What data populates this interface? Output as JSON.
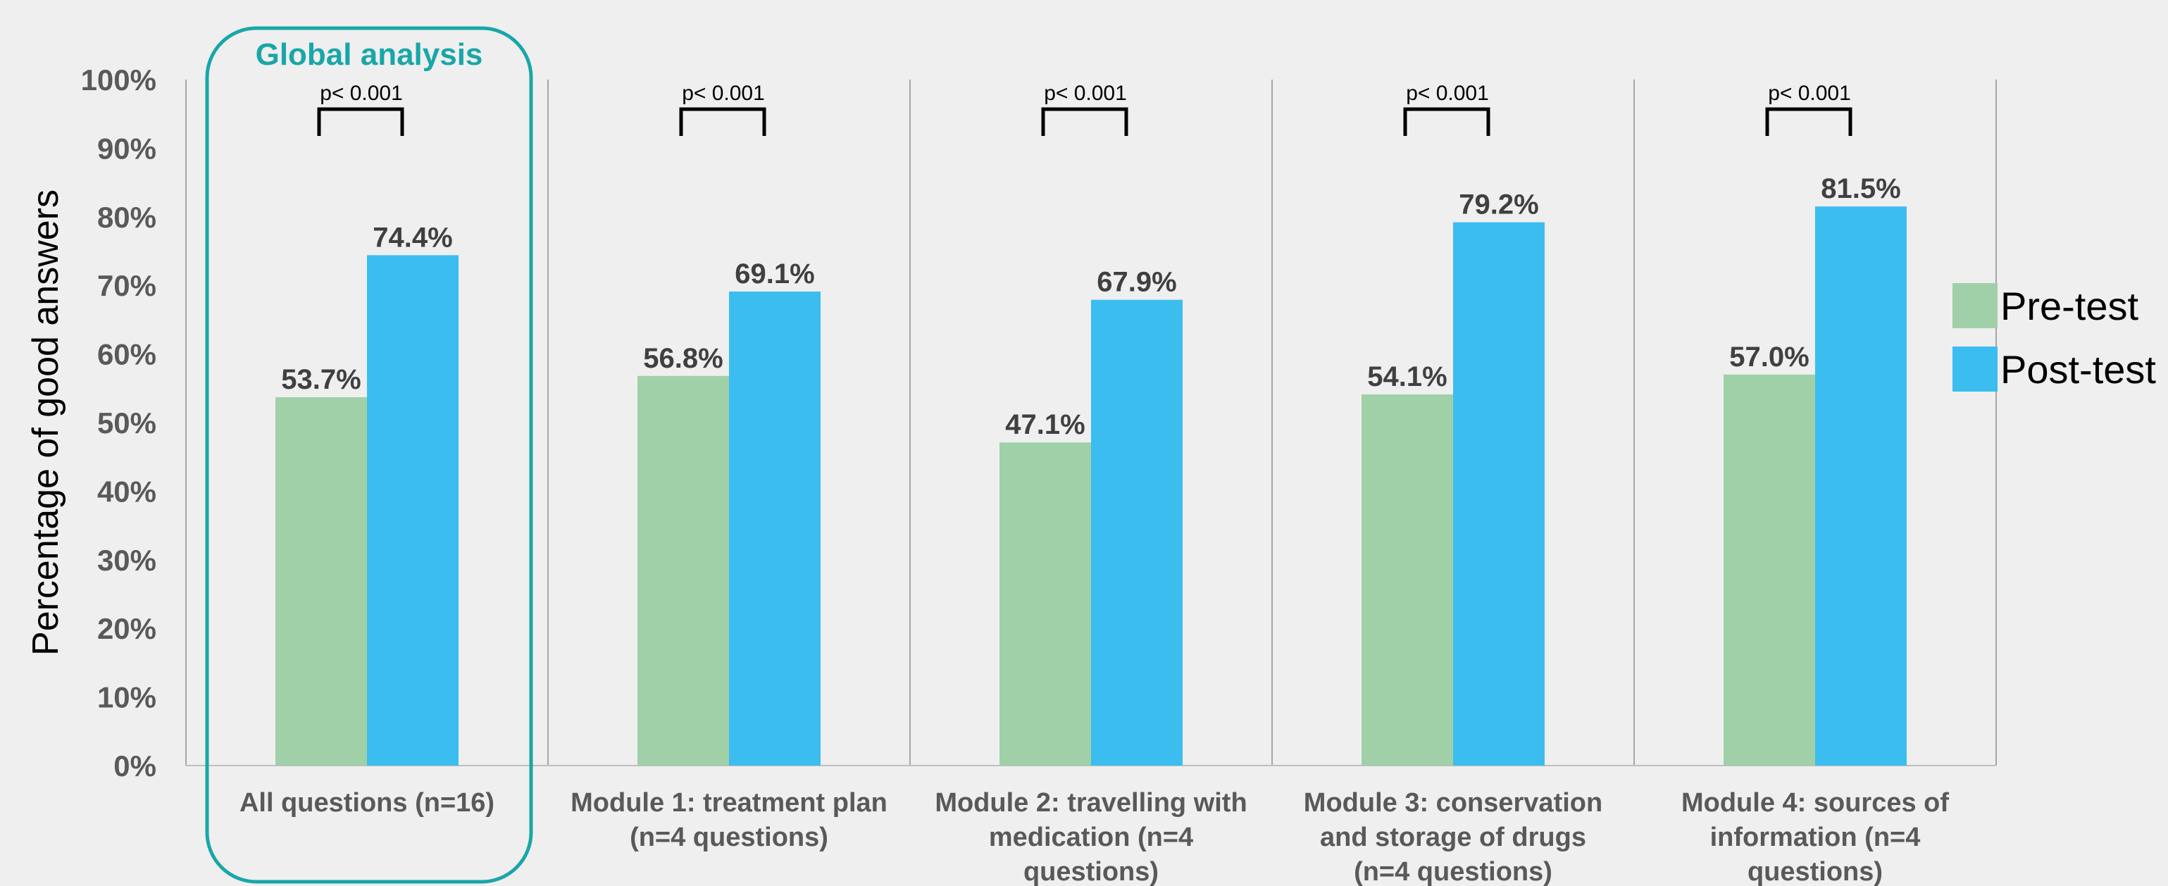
{
  "chart_data": {
    "type": "bar",
    "ylabel": "Percentage of good answers",
    "ylim": [
      0,
      100
    ],
    "y_ticks": [
      "0%",
      "10%",
      "20%",
      "30%",
      "40%",
      "50%",
      "60%",
      "70%",
      "80%",
      "90%",
      "100%"
    ],
    "categories": [
      [
        "All questions (n=16)"
      ],
      [
        "Module 1: treatment plan",
        "(n=4 questions)"
      ],
      [
        "Module 2: travelling with",
        "medication  (n=4",
        "questions)"
      ],
      [
        "Module 3: conservation",
        "and storage of drugs",
        "(n=4 questions)"
      ],
      [
        "Module 4: sources of",
        "information  (n=4",
        "questions)"
      ]
    ],
    "series": [
      {
        "name": "Pre-test",
        "color": "#a0d0a8",
        "values": [
          53.7,
          56.8,
          47.1,
          54.1,
          57.0
        ],
        "labels": [
          "53.7%",
          "56.8%",
          "47.1%",
          "54.1%",
          "57.0%"
        ]
      },
      {
        "name": "Post-test",
        "color": "#3bbdf0",
        "values": [
          74.4,
          69.1,
          67.9,
          79.2,
          81.5
        ],
        "labels": [
          "74.4%",
          "69.1%",
          "67.9%",
          "79.2%",
          "81.5%"
        ]
      }
    ],
    "significance": [
      "p< 0.001",
      "p< 0.001",
      "p< 0.001",
      "p< 0.001",
      "p< 0.001"
    ],
    "highlight": {
      "label": "Global analysis",
      "category_index": 0,
      "color": "#1aa6a8"
    },
    "legend_position": "right",
    "grid": false
  }
}
